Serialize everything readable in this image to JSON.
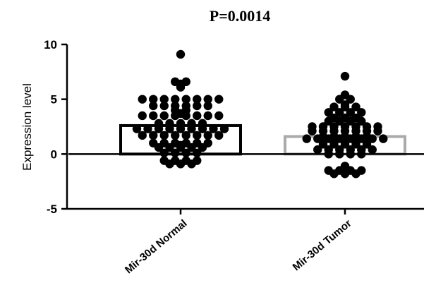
{
  "chart_data": {
    "type": "scatter",
    "title": "P=0.0014",
    "xlabel": "",
    "ylabel": "Expression level",
    "ylim": [
      -5,
      10
    ],
    "yticks": [
      10,
      5,
      0,
      -5
    ],
    "categories": [
      "Mir-30d Normal",
      "Mir-30d Tumor"
    ],
    "bar_means": [
      2.6,
      1.6
    ],
    "bar_colors": [
      "#000000",
      "#aaaaaa"
    ],
    "point_color": "#000000",
    "groups": [
      {
        "category": "Mir-30d Normal",
        "values": [
          9.1,
          6.6,
          6.4,
          6.3,
          6.1,
          6.6,
          5.0,
          5.0,
          5.0,
          5.0,
          5.0,
          5.0,
          5.0,
          5.0,
          4.4,
          4.4,
          4.4,
          4.4,
          4.4,
          4.4,
          4.0,
          4.0,
          3.7,
          3.5,
          3.5,
          3.5,
          3.5,
          3.5,
          3.5,
          3.5,
          3.5,
          2.8,
          2.8,
          2.8,
          2.8,
          2.8,
          2.3,
          2.3,
          2.3,
          2.3,
          2.3,
          2.3,
          2.3,
          2.3,
          2.3,
          1.7,
          1.7,
          1.7,
          1.7,
          1.7,
          1.7,
          1.7,
          1.7,
          1.0,
          1.0,
          1.0,
          1.0,
          1.0,
          1.0,
          0.8,
          0.6,
          0.6,
          0.6,
          0.6,
          0.6,
          0.1,
          0.1,
          0.1,
          0.1,
          -0.6,
          -0.6,
          -0.6,
          -0.6,
          -0.9,
          -0.9,
          -0.9
        ]
      },
      {
        "category": "Mir-30d Tumor",
        "values": [
          7.1,
          5.4,
          5.0,
          5.0,
          4.5,
          4.3,
          4.3,
          4.3,
          3.8,
          3.8,
          3.8,
          3.8,
          3.3,
          3.3,
          3.3,
          3.0,
          3.0,
          3.0,
          3.0,
          2.5,
          2.5,
          2.5,
          2.5,
          2.5,
          2.5,
          2.5,
          2.1,
          2.1,
          2.1,
          2.1,
          2.1,
          2.1,
          2.1,
          1.6,
          1.6,
          1.6,
          1.6,
          1.6,
          1.4,
          1.4,
          1.4,
          1.4,
          1.4,
          1.4,
          1.4,
          1.4,
          0.9,
          0.9,
          0.9,
          0.9,
          0.9,
          0.4,
          0.4,
          0.4,
          0.4,
          0.4,
          0.4,
          0.0,
          0.0,
          0.0,
          0.0,
          -1.1,
          -1.4,
          -1.5,
          -1.5,
          -1.5,
          -1.5,
          -1.6,
          -1.7,
          -1.8,
          -1.8,
          -1.8
        ]
      }
    ]
  }
}
